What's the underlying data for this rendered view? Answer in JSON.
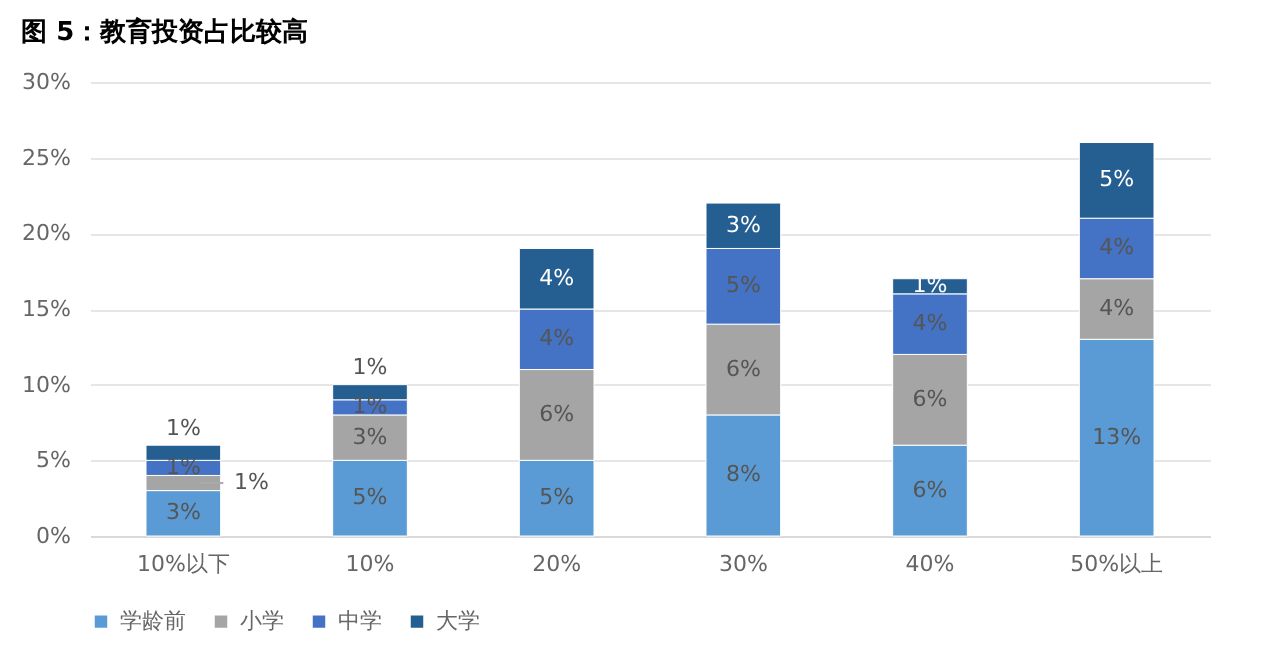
{
  "chart_data": {
    "type": "bar",
    "title": "图 5：教育投资占比较高",
    "stacked": true,
    "categories": [
      "10%以下",
      "10%",
      "20%",
      "30%",
      "40%",
      "50%以上"
    ],
    "series": [
      {
        "name": "学龄前",
        "color": "#5b9bd5",
        "values": [
          3,
          5,
          5,
          8,
          6,
          13
        ],
        "value_labels": [
          "3%",
          "5%",
          "5%",
          "8%",
          "6%",
          "13%"
        ]
      },
      {
        "name": "小学",
        "color": "#a5a5a5",
        "values": [
          1,
          3,
          6,
          6,
          6,
          4
        ],
        "value_labels": [
          "1%",
          "3%",
          "6%",
          "6%",
          "6%",
          "4%"
        ]
      },
      {
        "name": "中学",
        "color": "#4472c4",
        "values": [
          1,
          1,
          4,
          5,
          4,
          4
        ],
        "value_labels": [
          "1%",
          "1%",
          "4%",
          "5%",
          "4%",
          "4%"
        ]
      },
      {
        "name": "大学",
        "color": "#255e91",
        "values": [
          1,
          1,
          4,
          3,
          1,
          5
        ],
        "value_labels": [
          "1%",
          "1%",
          "4%",
          "3%",
          "1%",
          "5%"
        ]
      }
    ],
    "ylim": [
      0,
      30
    ],
    "yticks": [
      {
        "value": 0,
        "label": "0%"
      },
      {
        "value": 5,
        "label": "5%"
      },
      {
        "value": 10,
        "label": "10%"
      },
      {
        "value": 15,
        "label": "15%"
      },
      {
        "value": 20,
        "label": "20%"
      },
      {
        "value": 25,
        "label": "25%"
      },
      {
        "value": 30,
        "label": "30%"
      }
    ],
    "grid": "y",
    "legend": "bottom"
  }
}
